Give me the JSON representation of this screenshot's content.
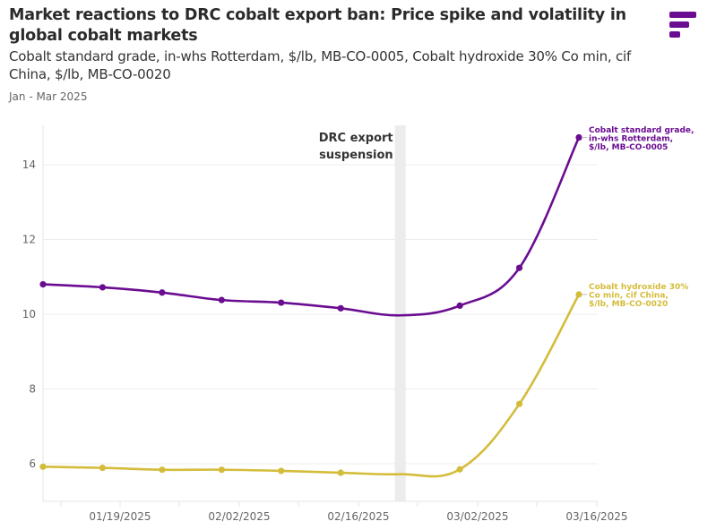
{
  "header": {
    "title": "Market reactions to DRC cobalt export ban: Price spike and volatility in global cobalt markets",
    "subtitle": "Cobalt standard grade, in-whs Rotterdam, $/lb, MB-CO-0005, Cobalt hydroxide 30% Co min, cif China, $/lb, MB-CO-0020",
    "date_range": "Jan - Mar 2025",
    "logo_icon": "brand-logo-icon"
  },
  "chart_data": {
    "type": "line",
    "title": "Market reactions to DRC cobalt export ban: Price spike and volatility in global cobalt markets",
    "xlabel": "",
    "ylabel": "",
    "x": [
      "01/10/2025",
      "01/17/2025",
      "01/24/2025",
      "01/31/2025",
      "02/07/2025",
      "02/14/2025",
      "02/21/2025",
      "02/28/2025",
      "03/07/2025",
      "03/14/2025"
    ],
    "x_tick_labels": [
      "01/19/2025",
      "02/02/2025",
      "02/16/2025",
      "03/02/2025",
      "03/16/2025"
    ],
    "y_tick_labels": [
      "6",
      "8",
      "10",
      "12",
      "14"
    ],
    "y_ticks": [
      6,
      8,
      10,
      12,
      14
    ],
    "ylim": [
      5,
      15
    ],
    "grid": true,
    "annotation": {
      "line1": "DRC export",
      "line2": "suspension",
      "x": "02/21/2025",
      "band_color": "#ececec"
    },
    "series": [
      {
        "name": "Cobalt standard grade, in-whs Rotterdam, $/lb, MB-CO-0005",
        "label_lines": [
          "Cobalt standard grade,",
          "in-whs Rotterdam,",
          "$/lb, MB-CO-0005"
        ],
        "color": "#6a0d91",
        "values": [
          10.8,
          10.72,
          10.58,
          10.38,
          10.31,
          10.16,
          9.97,
          10.23,
          11.24,
          14.73
        ],
        "markers": [
          true,
          true,
          true,
          true,
          true,
          true,
          false,
          true,
          true,
          true
        ]
      },
      {
        "name": "Cobalt hydroxide 30% Co min, cif China, $/lb, MB-CO-0020",
        "label_lines": [
          "Cobalt hydroxide 30%",
          "Co min, cif China,",
          "$/lb, MB-CO-0020"
        ],
        "color": "#d4bc3b",
        "values": [
          5.92,
          5.89,
          5.84,
          5.84,
          5.81,
          5.76,
          5.72,
          5.85,
          7.6,
          10.53
        ],
        "markers": [
          true,
          true,
          true,
          true,
          true,
          true,
          false,
          true,
          true,
          true
        ]
      }
    ]
  }
}
